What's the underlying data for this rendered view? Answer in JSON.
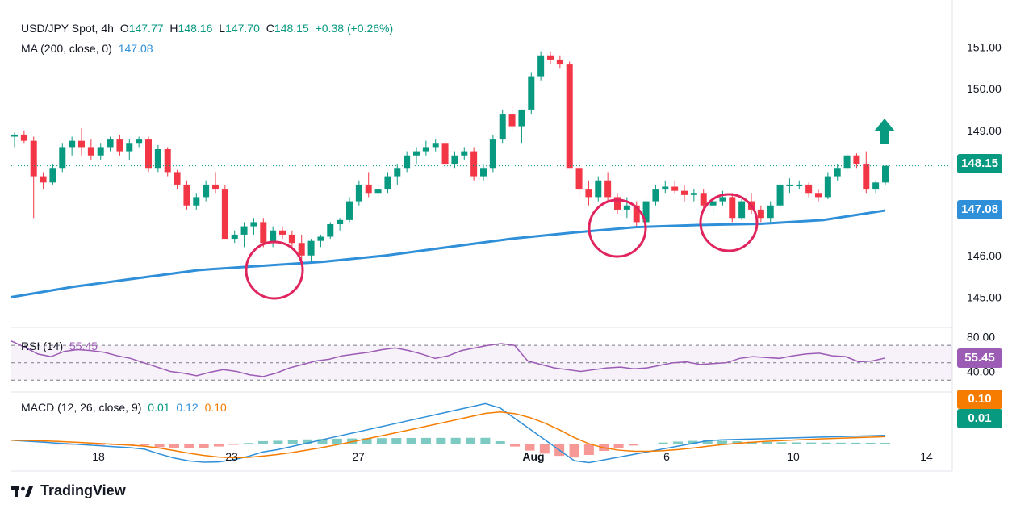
{
  "header": {
    "symbol": "USD/JPY Spot, 4h",
    "open_label": "O",
    "open": "147.77",
    "high_label": "H",
    "high": "148.16",
    "low_label": "L",
    "low": "147.70",
    "close_label": "C",
    "close": "148.15",
    "change": "+0.38 (+0.26%)"
  },
  "ma_legend": {
    "label": "MA (200, close, 0)",
    "value": "147.08"
  },
  "rsi_legend": {
    "label": "RSI (14)",
    "value": "55.45"
  },
  "macd_legend": {
    "label": "MACD (12, 26, close, 9)",
    "hist": "0.01",
    "macd": "0.12",
    "signal": "0.10"
  },
  "badges": {
    "price": "148.15",
    "ma": "147.08",
    "rsi": "55.45",
    "macd_signal": "0.10",
    "macd_hist": "0.01"
  },
  "branding": "TradingView",
  "colors": {
    "up": "#089981",
    "down": "#f23645",
    "ma": "#2f8fd8",
    "rsi": "#9c5bb5",
    "macd": "#2f8fd8",
    "signal": "#f57c00",
    "circle": "#e0245e"
  },
  "chart_data": {
    "type": "candlestick",
    "interval": "4h",
    "price_axis": {
      "ticks": [
        145.0,
        146.0,
        149.0,
        150.0,
        151.0
      ],
      "tick_labels": [
        "145.00",
        "146.00",
        "149.00",
        "150.00",
        "151.00"
      ],
      "range": [
        144.35,
        151.55
      ]
    },
    "date_axis": {
      "labels": [
        "18",
        "23",
        "27",
        "Aug",
        "6",
        "10",
        "14"
      ]
    },
    "ohlc_points": [
      [
        148.85,
        148.95,
        148.6,
        148.9
      ],
      [
        148.9,
        149.0,
        148.7,
        148.75
      ],
      [
        148.75,
        148.85,
        146.9,
        147.9
      ],
      [
        147.9,
        148.0,
        147.6,
        147.75
      ],
      [
        147.75,
        148.2,
        147.7,
        148.1
      ],
      [
        148.1,
        148.7,
        148.0,
        148.6
      ],
      [
        148.6,
        148.85,
        148.4,
        148.75
      ],
      [
        148.75,
        149.05,
        148.4,
        148.6
      ],
      [
        148.6,
        148.8,
        148.3,
        148.4
      ],
      [
        148.4,
        148.7,
        148.3,
        148.6
      ],
      [
        148.6,
        148.85,
        148.5,
        148.8
      ],
      [
        148.8,
        148.9,
        148.4,
        148.5
      ],
      [
        148.5,
        148.8,
        148.3,
        148.7
      ],
      [
        148.7,
        148.85,
        148.6,
        148.8
      ],
      [
        148.8,
        148.85,
        148.0,
        148.1
      ],
      [
        148.1,
        148.65,
        148.0,
        148.55
      ],
      [
        148.55,
        148.6,
        147.9,
        148.0
      ],
      [
        148.0,
        148.05,
        147.6,
        147.7
      ],
      [
        147.7,
        147.8,
        147.1,
        147.2
      ],
      [
        147.2,
        147.5,
        147.1,
        147.4
      ],
      [
        147.4,
        147.8,
        147.3,
        147.7
      ],
      [
        147.7,
        148.0,
        147.5,
        147.6
      ],
      [
        147.6,
        147.7,
        146.5,
        146.4
      ],
      [
        146.4,
        146.6,
        146.3,
        146.5
      ],
      [
        146.5,
        146.8,
        146.2,
        146.7
      ],
      [
        146.7,
        146.9,
        146.5,
        146.8
      ],
      [
        146.8,
        146.9,
        146.2,
        146.3
      ],
      [
        146.3,
        146.7,
        146.2,
        146.6
      ],
      [
        146.6,
        146.7,
        146.4,
        146.5
      ],
      [
        146.5,
        146.6,
        146.2,
        146.3
      ],
      [
        146.3,
        146.5,
        145.9,
        146.0
      ],
      [
        146.0,
        146.4,
        145.85,
        146.35
      ],
      [
        146.35,
        146.5,
        146.2,
        146.45
      ],
      [
        146.45,
        146.8,
        146.4,
        146.75
      ],
      [
        146.75,
        146.9,
        146.6,
        146.85
      ],
      [
        146.85,
        147.4,
        146.8,
        147.3
      ],
      [
        147.3,
        147.8,
        147.2,
        147.7
      ],
      [
        147.7,
        148.0,
        147.4,
        147.5
      ],
      [
        147.5,
        147.7,
        147.4,
        147.6
      ],
      [
        147.6,
        148.0,
        147.5,
        147.9
      ],
      [
        147.9,
        148.2,
        147.7,
        148.1
      ],
      [
        148.1,
        148.5,
        148.0,
        148.4
      ],
      [
        148.4,
        148.6,
        148.2,
        148.5
      ],
      [
        148.5,
        148.75,
        148.4,
        148.6
      ],
      [
        148.6,
        148.8,
        148.5,
        148.7
      ],
      [
        148.7,
        148.8,
        148.1,
        148.2
      ],
      [
        148.2,
        148.5,
        148.1,
        148.4
      ],
      [
        148.4,
        148.6,
        148.3,
        148.5
      ],
      [
        148.5,
        148.6,
        147.8,
        147.9
      ],
      [
        147.9,
        148.2,
        147.8,
        148.1
      ],
      [
        148.1,
        148.9,
        148.0,
        148.8
      ],
      [
        148.8,
        149.5,
        148.7,
        149.4
      ],
      [
        149.4,
        149.6,
        149.0,
        149.1
      ],
      [
        149.1,
        149.5,
        148.7,
        149.5
      ],
      [
        149.5,
        150.4,
        149.4,
        150.3
      ],
      [
        150.3,
        150.9,
        150.2,
        150.8
      ],
      [
        150.8,
        150.9,
        150.6,
        150.7
      ],
      [
        150.7,
        150.8,
        150.5,
        150.6
      ],
      [
        150.6,
        150.65,
        148.2,
        148.1
      ],
      [
        148.1,
        148.3,
        147.4,
        147.6
      ],
      [
        147.6,
        147.8,
        147.2,
        147.4
      ],
      [
        147.4,
        147.9,
        147.3,
        147.8
      ],
      [
        147.8,
        148.0,
        147.3,
        147.4
      ],
      [
        147.4,
        147.5,
        147.0,
        147.1
      ],
      [
        147.1,
        147.4,
        146.9,
        147.2
      ],
      [
        147.2,
        147.3,
        146.7,
        146.8
      ],
      [
        146.8,
        147.4,
        146.7,
        147.3
      ],
      [
        147.3,
        147.7,
        147.2,
        147.6
      ],
      [
        147.6,
        147.8,
        147.5,
        147.65
      ],
      [
        147.65,
        147.8,
        147.5,
        147.55
      ],
      [
        147.55,
        147.7,
        147.3,
        147.45
      ],
      [
        147.45,
        147.6,
        147.3,
        147.5
      ],
      [
        147.5,
        147.6,
        147.1,
        147.2
      ],
      [
        147.2,
        147.4,
        147.0,
        147.3
      ],
      [
        147.3,
        147.55,
        147.2,
        147.4
      ],
      [
        147.4,
        147.5,
        146.8,
        146.9
      ],
      [
        146.9,
        147.4,
        146.85,
        147.3
      ],
      [
        147.3,
        147.5,
        147.0,
        147.1
      ],
      [
        147.1,
        147.2,
        146.8,
        146.9
      ],
      [
        146.9,
        147.3,
        146.8,
        147.2
      ],
      [
        147.2,
        147.8,
        147.1,
        147.7
      ],
      [
        147.7,
        147.85,
        147.5,
        147.7
      ],
      [
        147.7,
        147.8,
        147.6,
        147.7
      ],
      [
        147.7,
        147.75,
        147.4,
        147.5
      ],
      [
        147.5,
        147.6,
        147.3,
        147.4
      ],
      [
        147.4,
        148.0,
        147.35,
        147.9
      ],
      [
        147.9,
        148.2,
        147.8,
        148.1
      ],
      [
        148.1,
        148.45,
        148.0,
        148.4
      ],
      [
        148.4,
        148.45,
        148.1,
        148.2
      ],
      [
        148.2,
        148.5,
        147.5,
        147.6
      ],
      [
        147.6,
        147.8,
        147.5,
        147.75
      ],
      [
        147.75,
        148.16,
        147.7,
        148.15
      ]
    ],
    "ma_200": [
      145.0,
      145.25,
      145.45,
      145.65,
      145.75,
      145.85,
      146.0,
      146.2,
      146.4,
      146.55,
      146.68,
      146.73,
      146.76,
      146.85,
      147.08
    ],
    "rsi": {
      "levels": [
        70,
        50,
        30
      ],
      "range": [
        20,
        85
      ],
      "ticks": [
        "80.00",
        "40.00"
      ],
      "values": [
        75,
        68,
        60,
        57,
        63,
        65,
        64,
        62,
        58,
        55,
        50,
        45,
        40,
        38,
        35,
        39,
        42,
        40,
        36,
        34,
        38,
        44,
        48,
        52,
        54,
        58,
        60,
        62,
        65,
        67,
        64,
        60,
        55,
        58,
        64,
        67,
        70,
        72,
        70,
        52,
        48,
        44,
        42,
        40,
        42,
        44,
        45,
        43,
        44,
        47,
        50,
        51,
        48,
        49,
        50,
        55,
        57,
        56,
        55,
        58,
        60,
        61,
        58,
        57,
        51,
        52,
        55.45
      ]
    },
    "macd": {
      "range": [
        -0.35,
        0.7
      ],
      "ticks": [],
      "annotations": [
        "0.10",
        "0.01"
      ]
    },
    "annotations": [
      "circle near 23-24 low",
      "circle near Aug 5 low",
      "circle near Aug 8 low",
      "up arrow"
    ]
  }
}
